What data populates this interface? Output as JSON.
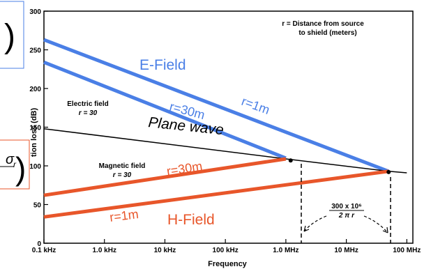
{
  "chart_data": {
    "type": "line",
    "xlabel": "Frequency",
    "ylabel": "tion loss (dB)",
    "x_scale": "log",
    "x_ticks": [
      "0.1 kHz",
      "1.0 kHz",
      "10 kHz",
      "100 kHz",
      "1.0 MHz",
      "10 MHz",
      "100 MHz"
    ],
    "x_tick_values_hz": [
      100,
      1000,
      10000,
      100000,
      1000000,
      10000000,
      100000000
    ],
    "ylim": [
      0,
      300
    ],
    "y_ticks": [
      "0",
      "50",
      "100",
      "150",
      "200",
      "250",
      "300"
    ],
    "series": [
      {
        "name": "E-Field r=1m",
        "color": "#4a7fe6",
        "points": [
          [
            100,
            263
          ],
          [
            50000000,
            93
          ]
        ]
      },
      {
        "name": "E-Field r=30m",
        "color": "#4a7fe6",
        "points": [
          [
            100,
            234
          ],
          [
            1000000,
            110
          ]
        ]
      },
      {
        "name": "Plane wave",
        "color": "#000000",
        "points": [
          [
            100,
            148
          ],
          [
            1000000,
            109
          ],
          [
            50000000,
            93
          ],
          [
            100000000,
            91
          ]
        ]
      },
      {
        "name": "H-Field r=30m",
        "color": "#e8562a",
        "points": [
          [
            100,
            62
          ],
          [
            1000000,
            109
          ]
        ]
      },
      {
        "name": "H-Field r=1m",
        "color": "#e8562a",
        "points": [
          [
            100,
            34
          ],
          [
            50000000,
            93
          ]
        ]
      }
    ],
    "markers": [
      {
        "x": 1200000,
        "y": 107
      },
      {
        "x": 50000000,
        "y": 92
      }
    ],
    "annotations": {
      "r_definition_1": "r = Distance from source",
      "r_definition_2": "to shield (meters)",
      "electric_field_1": "Electric field",
      "electric_field_2": "r = 30",
      "magnetic_field_1": "Magnetic field",
      "magnetic_field_2": "r = 30",
      "plane_wave": "Plane wave",
      "e_field": "E-Field",
      "h_field": "H-Field",
      "e_r30": "r=30m",
      "e_r1": "r=1m",
      "h_r30": "r=30m",
      "h_r1": "r=1m",
      "formula_num": "300 x 10⁶",
      "formula_den": "2 π r"
    }
  },
  "inset_left_top": {
    "glyph": ")"
  },
  "inset_left_bottom": {
    "glyph": "σ",
    "subscript": "r",
    "bracket": ")"
  }
}
